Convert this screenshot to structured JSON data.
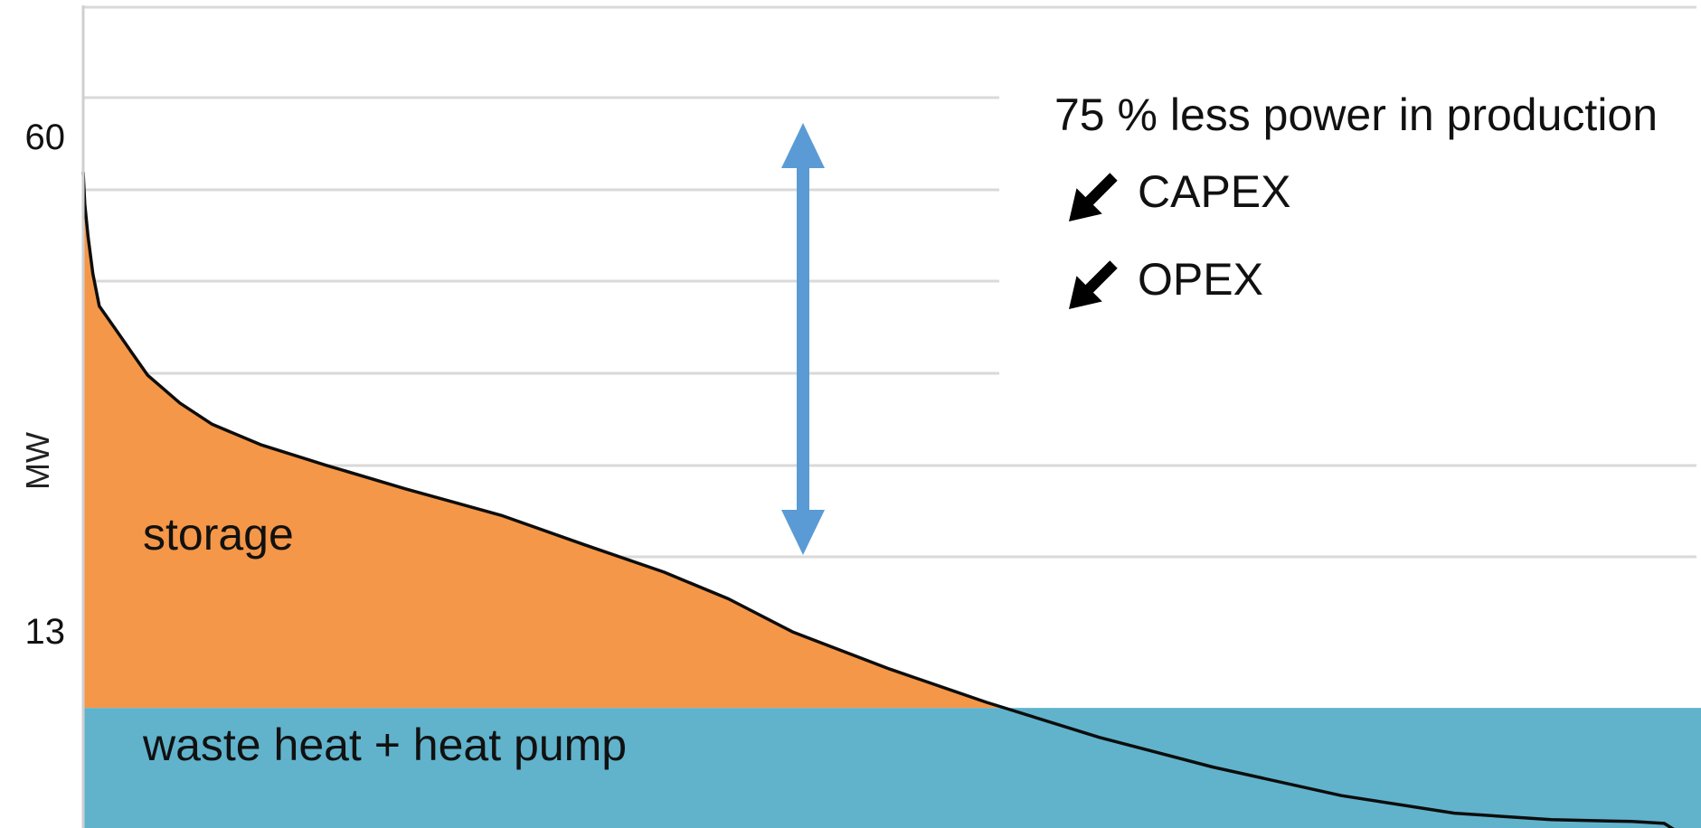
{
  "chart_data": {
    "type": "area",
    "title": "",
    "xlabel": "",
    "ylabel": "MW",
    "yticks": [
      60,
      13
    ],
    "ylim": [
      0,
      73
    ],
    "xlim": [
      0,
      100
    ],
    "grid": true,
    "baseload_mw": 13,
    "duration_curve": {
      "x": [
        0,
        0.1,
        0.3,
        0.6,
        1,
        2,
        3,
        4,
        6,
        8,
        11,
        15,
        20,
        26,
        31,
        36,
        40,
        44,
        50,
        56,
        63,
        70,
        78,
        85,
        91,
        96,
        98,
        99,
        100
      ],
      "y": [
        71,
        67.5,
        64,
        60,
        56.5,
        54,
        51.5,
        49,
        46,
        43.7,
        41.5,
        39.3,
        36.7,
        33.8,
        30.7,
        27.7,
        24.8,
        21.2,
        17.2,
        13.6,
        9.8,
        6.6,
        3.5,
        1.6,
        0.9,
        0.7,
        0.5,
        -0.6,
        -1.6
      ]
    },
    "regions": [
      {
        "name": "storage",
        "color": "#f59748"
      },
      {
        "name": "waste heat + heat pump",
        "color": "#61b3cc"
      }
    ],
    "reduction_arrow": {
      "from_mw": 13.5,
      "to_mw": 55.5,
      "x": 44.5,
      "color": "#5b9bd5"
    },
    "annotations": [
      {
        "text": "75 % less power in production"
      },
      {
        "text": "CAPEX",
        "arrow": "down-left"
      },
      {
        "text": "OPEX",
        "arrow": "down-left"
      }
    ]
  }
}
